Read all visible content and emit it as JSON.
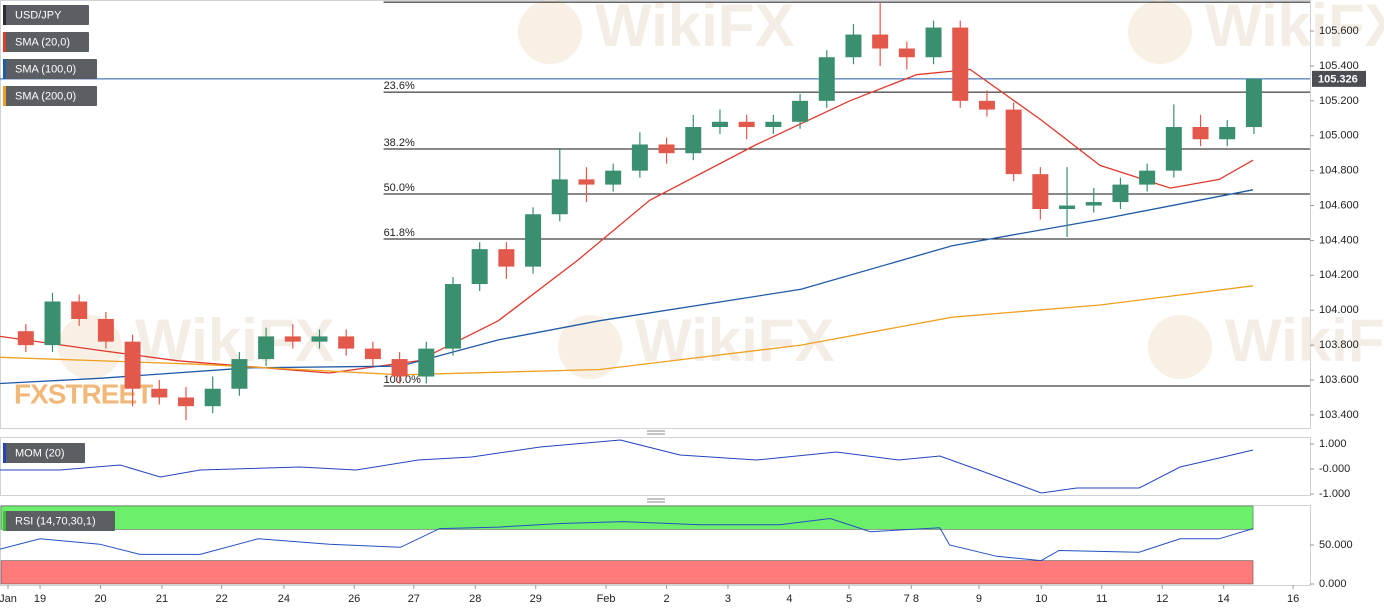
{
  "chart_data": [
    {
      "type": "candlestick",
      "title": "USD/JPY",
      "x": [
        2.9,
        5.9,
        8.9,
        11.9,
        14.9,
        17.9,
        20.9,
        23.9,
        26.9,
        29.9,
        32.9,
        35.9,
        38.9,
        41.9,
        44.9,
        47.9,
        50.9,
        53.9,
        56.9,
        59.9,
        62.9,
        65.9,
        68.9,
        71.9,
        74.9,
        77.9,
        80.9,
        83.9,
        86.9,
        89.9,
        92.9,
        95.9,
        98.9,
        101.9,
        104.9,
        107.9,
        110.9,
        113.9,
        116.9,
        119.9,
        122.9,
        125.9,
        128.9,
        131.9,
        134.9,
        137.9,
        140.9
      ],
      "open": [
        103.88,
        103.8,
        104.05,
        103.95,
        103.82,
        103.55,
        103.5,
        103.45,
        103.55,
        103.72,
        103.85,
        103.82,
        103.85,
        103.78,
        103.72,
        103.62,
        103.78,
        104.15,
        104.35,
        104.25,
        104.55,
        104.75,
        104.72,
        104.8,
        104.95,
        104.9,
        105.05,
        105.08,
        105.05,
        105.08,
        105.2,
        105.45,
        105.58,
        105.5,
        105.45,
        105.62,
        105.2,
        105.15,
        104.78,
        104.58,
        104.6,
        104.62,
        104.72,
        104.8,
        105.05,
        104.98,
        105.05
      ],
      "high": [
        103.92,
        104.1,
        104.09,
        103.99,
        103.86,
        103.6,
        103.56,
        103.62,
        103.76,
        103.9,
        103.92,
        103.89,
        103.89,
        103.82,
        103.76,
        103.82,
        104.19,
        104.39,
        104.39,
        104.59,
        104.93,
        104.82,
        104.84,
        105.02,
        104.99,
        105.12,
        105.15,
        105.12,
        105.12,
        105.24,
        105.49,
        105.64,
        105.76,
        105.54,
        105.66,
        105.66,
        105.26,
        105.19,
        104.82,
        104.82,
        104.7,
        104.76,
        104.84,
        105.18,
        105.12,
        105.09,
        105.33
      ],
      "low": [
        103.76,
        103.76,
        103.91,
        103.78,
        103.45,
        103.46,
        103.37,
        103.41,
        103.51,
        103.68,
        103.78,
        103.78,
        103.74,
        103.68,
        103.58,
        103.58,
        103.74,
        104.11,
        104.18,
        104.21,
        104.51,
        104.62,
        104.68,
        104.76,
        104.84,
        104.86,
        105.01,
        104.98,
        105.01,
        105.04,
        105.16,
        105.41,
        105.4,
        105.38,
        105.41,
        105.16,
        105.11,
        104.74,
        104.52,
        104.42,
        104.56,
        104.58,
        104.68,
        104.76,
        104.94,
        104.94,
        105.01
      ],
      "close": [
        103.8,
        104.05,
        103.95,
        103.82,
        103.55,
        103.5,
        103.45,
        103.55,
        103.72,
        103.85,
        103.82,
        103.85,
        103.78,
        103.72,
        103.62,
        103.78,
        104.15,
        104.35,
        104.25,
        104.55,
        104.75,
        104.72,
        104.8,
        104.95,
        104.9,
        105.05,
        105.08,
        105.05,
        105.08,
        105.2,
        105.45,
        105.58,
        105.5,
        105.45,
        105.62,
        105.2,
        105.15,
        104.78,
        104.58,
        104.6,
        104.62,
        104.72,
        104.8,
        105.05,
        104.98,
        105.05,
        105.326
      ],
      "up_color": "#3a8f6f",
      "down_color": "#e2594b",
      "series": [
        {
          "name": "SMA (20,0)",
          "color": "#e0392d",
          "x": [
            0,
            11.2,
            20,
            37,
            47,
            56,
            65,
            73,
            85,
            95.5,
            103,
            109,
            117,
            123.6,
            131.5,
            137,
            140.8
          ],
          "values": [
            103.85,
            103.77,
            103.71,
            103.64,
            103.71,
            103.94,
            104.29,
            104.63,
            104.95,
            105.2,
            105.35,
            105.38,
            105.09,
            104.83,
            104.7,
            104.75,
            104.86
          ]
        },
        {
          "name": "SMA (100,0)",
          "color": "#1f5aa6",
          "x": [
            0,
            11.2,
            28,
            45,
            56,
            67.4,
            90,
            107,
            123.6,
            140.8
          ],
          "values": [
            103.58,
            103.61,
            103.67,
            103.68,
            103.83,
            103.94,
            104.12,
            104.37,
            104.52,
            104.69
          ]
        },
        {
          "name": "SMA (200,0)",
          "color": "#f0a020",
          "x": [
            0,
            22.5,
            45,
            67.4,
            90,
            107,
            123.6,
            140.8
          ],
          "values": [
            103.73,
            103.69,
            103.63,
            103.66,
            103.8,
            103.96,
            104.03,
            104.14
          ]
        }
      ],
      "xlim": [
        0,
        147.2
      ],
      "ylim": [
        103.325,
        105.778
      ],
      "yticks": [
        {
          "value": 103.4,
          "label": "103.400"
        },
        {
          "value": 103.6,
          "label": "103.600"
        },
        {
          "value": 103.8,
          "label": "103.800"
        },
        {
          "value": 104.0,
          "label": "104.000"
        },
        {
          "value": 104.2,
          "label": "104.200"
        },
        {
          "value": 104.4,
          "label": "104.400"
        },
        {
          "value": 104.6,
          "label": "104.600"
        },
        {
          "value": 104.8,
          "label": "104.800"
        },
        {
          "value": 105.0,
          "label": "105.000"
        },
        {
          "value": 105.2,
          "label": "105.200"
        },
        {
          "value": 105.4,
          "label": "105.400"
        },
        {
          "value": 105.6,
          "label": "105.600"
        }
      ],
      "xticks": [
        {
          "value": 0.9,
          "label": "Jan"
        },
        {
          "value": 4.5,
          "label": "19"
        },
        {
          "value": 11.3,
          "label": "20"
        },
        {
          "value": 18.2,
          "label": "21"
        },
        {
          "value": 24.9,
          "label": "22"
        },
        {
          "value": 31.9,
          "label": "24"
        },
        {
          "value": 39.8,
          "label": "26"
        },
        {
          "value": 46.5,
          "label": "27"
        },
        {
          "value": 53.4,
          "label": "28"
        },
        {
          "value": 60.2,
          "label": "29"
        },
        {
          "value": 68.1,
          "label": "Feb"
        },
        {
          "value": 74.9,
          "label": "2"
        },
        {
          "value": 81.8,
          "label": "3"
        },
        {
          "value": 88.7,
          "label": "4"
        },
        {
          "value": 95.4,
          "label": "5"
        },
        {
          "value": 102.4,
          "label": "7 8"
        },
        {
          "value": 110,
          "label": "9"
        },
        {
          "value": 117,
          "label": "10"
        },
        {
          "value": 123.8,
          "label": "11"
        },
        {
          "value": 130.6,
          "label": "12"
        },
        {
          "value": 137.5,
          "label": "14"
        },
        {
          "value": 145.3,
          "label": "16"
        }
      ],
      "fib_levels": {
        "start_x": 43.1,
        "levels": [
          {
            "value": 105.766,
            "label": null
          },
          {
            "value": 105.25,
            "label": "23.6%"
          },
          {
            "value": 104.924,
            "label": "38.2%"
          },
          {
            "value": 104.666,
            "label": "50.0%"
          },
          {
            "value": 104.408,
            "label": "61.8%"
          },
          {
            "value": 103.566,
            "label": "100.0%"
          }
        ]
      },
      "last_price": {
        "value": 105.326,
        "label": "105.326",
        "color": "#1f5aa6"
      },
      "watermark": "WikiFX",
      "brand": "FXSTREET"
    },
    {
      "type": "line",
      "title": "MOM (20)",
      "series": [
        {
          "color": "#2444c0",
          "x": [
            0,
            6.7,
            13.5,
            18,
            22.5,
            33.7,
            40,
            47,
            53,
            60.7,
            69.7,
            76.4,
            85,
            94,
            101,
            105.6,
            110,
            117,
            121,
            128,
            132.6,
            137,
            140.8
          ],
          "values": [
            -0.04,
            -0.04,
            0.16,
            -0.32,
            -0.04,
            0.08,
            -0.04,
            0.36,
            0.48,
            0.88,
            1.16,
            0.56,
            0.36,
            0.68,
            0.36,
            0.52,
            -0.04,
            -0.96,
            -0.76,
            -0.76,
            0.08,
            0.44,
            0.76
          ]
        }
      ],
      "ylim": [
        -1.04,
        1.28
      ],
      "yticks": [
        {
          "value": 1,
          "label": "1.000"
        },
        {
          "value": 0,
          "label": "-0.000"
        },
        {
          "value": -1,
          "label": "-1.000"
        }
      ]
    },
    {
      "type": "line",
      "title": "RSI (14,70,30,1)",
      "series": [
        {
          "color": "#2450c0",
          "x": [
            0,
            4.5,
            11.2,
            15.7,
            22.5,
            29,
            37,
            45,
            49.4,
            56,
            63,
            70,
            78.7,
            87.6,
            93.3,
            97.8,
            105.6,
            106.7,
            112,
            117,
            119,
            128,
            132.6,
            137,
            140.8
          ],
          "values": [
            44.7,
            57.9,
            51,
            38,
            38,
            58,
            51,
            47,
            71,
            73,
            77.6,
            80,
            76,
            76,
            84,
            67,
            72,
            50,
            35.5,
            30,
            43,
            40.8,
            57.9,
            57.9,
            71
          ]
        }
      ],
      "bands": [
        {
          "range": [
            70,
            100
          ],
          "color": "#6cf06c"
        },
        {
          "range": [
            0,
            30
          ],
          "color": "#ff7a7a"
        }
      ],
      "ylim": [
        -1.3,
        101.3
      ],
      "yticks": [
        {
          "value": 50,
          "label": "50.000"
        },
        {
          "value": 0,
          "label": "0.000"
        }
      ]
    }
  ]
}
